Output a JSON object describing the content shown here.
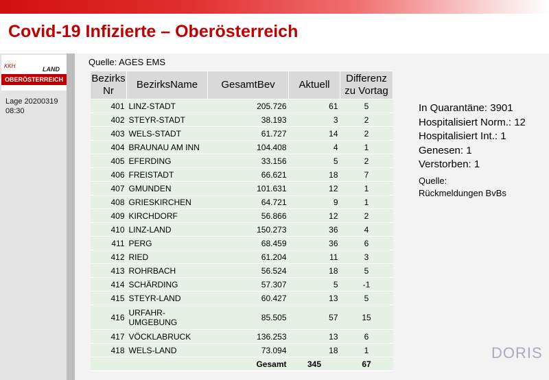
{
  "header": {
    "title": "Covid-19 Infizierte – Oberösterreich"
  },
  "logo": {
    "top": "KKH",
    "land": "LAND",
    "name": "OBERÖSTERREICH"
  },
  "date": [
    "Lage 20200319",
    "08:30"
  ],
  "source": "Quelle: AGES EMS",
  "table": {
    "headers": [
      "Bezirks Nr",
      "BezirksName",
      "GesamtBev",
      "Aktuell",
      "Differenz zu Vortag"
    ],
    "rows": [
      [
        "401",
        "LINZ-STADT",
        "205.726",
        "61",
        "5"
      ],
      [
        "402",
        "STEYR-STADT",
        "38.193",
        "3",
        "2"
      ],
      [
        "403",
        "WELS-STADT",
        "61.727",
        "14",
        "2"
      ],
      [
        "404",
        "BRAUNAU AM INN",
        "104.408",
        "4",
        "1"
      ],
      [
        "405",
        "EFERDING",
        "33.156",
        "5",
        "2"
      ],
      [
        "406",
        "FREISTADT",
        "66.621",
        "18",
        "7"
      ],
      [
        "407",
        "GMUNDEN",
        "101.631",
        "12",
        "1"
      ],
      [
        "408",
        "GRIESKIRCHEN",
        "64.721",
        "9",
        "1"
      ],
      [
        "409",
        "KIRCHDORF",
        "56.866",
        "12",
        "2"
      ],
      [
        "410",
        "LINZ-LAND",
        "150.273",
        "36",
        "4"
      ],
      [
        "411",
        "PERG",
        "68.459",
        "36",
        "6"
      ],
      [
        "412",
        "RIED",
        "61.204",
        "11",
        "3"
      ],
      [
        "413",
        "ROHRBACH",
        "56.524",
        "18",
        "5"
      ],
      [
        "414",
        "SCHÄRDING",
        "57.307",
        "5",
        "-1"
      ],
      [
        "415",
        "STEYR-LAND",
        "60.427",
        "13",
        "5"
      ],
      [
        "416",
        "URFAHR-UMGEBUNG",
        "85.505",
        "57",
        "15"
      ],
      [
        "417",
        "VÖCKLABRUCK",
        "136.253",
        "13",
        "6"
      ],
      [
        "418",
        "WELS-LAND",
        "73.094",
        "18",
        "1"
      ]
    ],
    "total": {
      "label": "Gesamt",
      "aktuell": "345",
      "differenz": "67"
    }
  },
  "info": [
    "In Quarantäne: 3901",
    "Hospitalisiert Norm.: 12",
    "Hospitalisiert Int.: 1",
    "Genesen: 1",
    "Verstorben: 1"
  ],
  "note": [
    "Quelle:",
    "Rückmeldungen BvBs"
  ],
  "footer_logo": "DORIS"
}
